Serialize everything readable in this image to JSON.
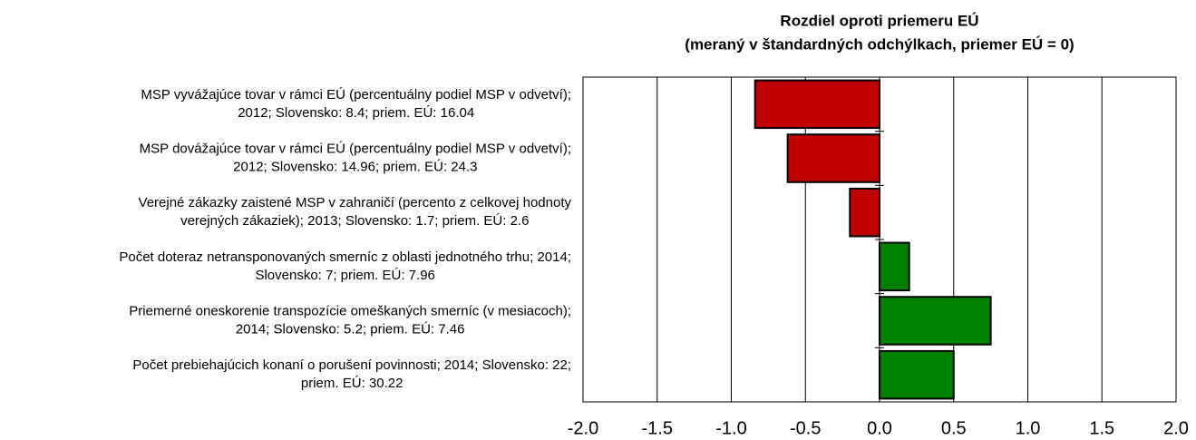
{
  "chart_data": {
    "type": "hbar",
    "title": "Rozdiel oproti priemeru EÚ",
    "subtitle": "(meraný v štandardných odchýlkach, priemer EÚ = 0)",
    "categories": [
      [
        "MSP vyvážajúce tovar v rámci EÚ (percentuálny podiel MSP v odvetví);",
        "2012; Slovensko: 8.4; priem. EÚ: 16.04"
      ],
      [
        "MSP dovážajúce tovar v rámci EÚ (percentuálny podiel MSP v odvetví);",
        "2012; Slovensko: 14.96; priem. EÚ: 24.3"
      ],
      [
        "Verejné zákazky zaistené MSP v zahraničí (percento z celkovej hodnoty",
        "verejných zákaziek); 2013; Slovensko: 1.7; priem. EÚ: 2.6"
      ],
      [
        "Počet doteraz netransponovaných smerníc z oblasti jednotného trhu; 2014;",
        "Slovensko: 7; priem. EÚ: 7.96"
      ],
      [
        "Priemerné oneskorenie transpozície omeškaných smerníc (v mesiacoch);",
        "2014; Slovensko: 5.2; priem. EÚ: 7.46"
      ],
      [
        "Počet prebiehajúcich konaní o porušení povinnosti; 2014; Slovensko: 22;",
        "priem. EÚ: 30.22"
      ]
    ],
    "values": [
      -0.84,
      -0.62,
      -0.2,
      0.2,
      0.75,
      0.5
    ],
    "colors": [
      "#c00000",
      "#c00000",
      "#c00000",
      "#008000",
      "#008000",
      "#008000"
    ],
    "xlim": [
      -2,
      2
    ],
    "xticks": [
      {
        "value": -2,
        "label": "-2.0"
      },
      {
        "value": -1.5,
        "label": "-1.5"
      },
      {
        "value": -1,
        "label": "-1.0"
      },
      {
        "value": -0.5,
        "label": "-0.5"
      },
      {
        "value": 0,
        "label": "0.0"
      },
      {
        "value": 0.5,
        "label": "0.5"
      },
      {
        "value": 1,
        "label": "1.0"
      },
      {
        "value": 1.5,
        "label": "1.5"
      },
      {
        "value": 2,
        "label": "2.0"
      }
    ],
    "grid": true
  }
}
